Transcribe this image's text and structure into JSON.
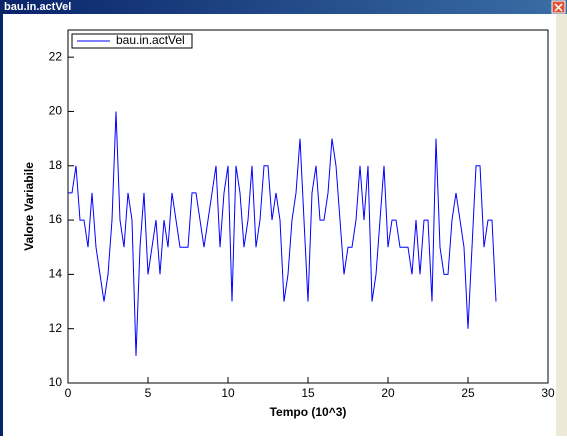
{
  "window": {
    "title": "bau.in.actVel"
  },
  "chart_data": {
    "type": "line",
    "x_label": "Tempo (10^3)",
    "y_label": "Valore Variabile",
    "x": [
      0,
      0.25,
      0.5,
      0.75,
      1,
      1.25,
      1.5,
      1.75,
      2,
      2.25,
      2.5,
      2.75,
      3,
      3.25,
      3.5,
      3.75,
      4,
      4.25,
      4.5,
      4.75,
      5,
      5.25,
      5.5,
      5.75,
      6,
      6.25,
      6.5,
      6.75,
      7,
      7.25,
      7.5,
      7.75,
      8,
      8.25,
      8.5,
      8.75,
      9,
      9.25,
      9.5,
      9.75,
      10,
      10.25,
      10.5,
      10.75,
      11,
      11.25,
      11.5,
      11.75,
      12,
      12.25,
      12.5,
      12.75,
      13,
      13.25,
      13.5,
      13.75,
      14,
      14.25,
      14.5,
      14.75,
      15,
      15.25,
      15.5,
      15.75,
      16,
      16.25,
      16.5,
      16.75,
      17,
      17.25,
      17.5,
      17.75,
      18,
      18.25,
      18.5,
      18.75,
      19,
      19.25,
      19.5,
      19.75,
      20,
      20.25,
      20.5,
      20.75,
      21,
      21.25,
      21.5,
      21.75,
      22,
      22.25,
      22.5,
      22.75,
      23,
      23.25,
      23.5,
      23.75,
      24,
      24.25,
      24.5,
      24.75,
      25,
      25.25,
      25.5,
      25.75,
      26,
      26.25,
      26.5,
      26.75
    ],
    "series": [
      {
        "name": "bau.in.actVel",
        "color": "#0000ff",
        "values": [
          17,
          17,
          18,
          16,
          16,
          15,
          17,
          15,
          14,
          13,
          14,
          16,
          20,
          16,
          15,
          17,
          16,
          11,
          15,
          17,
          14,
          15,
          16,
          14,
          16,
          15,
          17,
          16,
          15,
          15,
          15,
          17,
          17,
          16,
          15,
          16,
          17,
          18,
          15,
          17,
          18,
          13,
          18,
          17,
          15,
          16,
          18,
          15,
          16,
          18,
          18,
          16,
          17,
          16,
          13,
          14,
          16,
          17,
          19,
          16,
          13,
          17,
          18,
          16,
          16,
          17,
          19,
          18,
          16,
          14,
          15,
          15,
          16,
          18,
          16,
          18,
          13,
          14,
          16,
          18,
          15,
          16,
          16,
          15,
          15,
          15,
          14,
          16,
          14,
          16,
          16,
          13,
          19,
          15,
          14,
          14,
          16,
          17,
          16,
          15,
          12,
          15,
          18,
          18,
          15,
          16,
          16,
          13
        ]
      }
    ],
    "xlim": [
      0,
      30
    ],
    "ylim": [
      10,
      23
    ],
    "xticks": [
      0,
      5,
      10,
      15,
      20,
      25,
      30
    ],
    "yticks": [
      10,
      12,
      14,
      16,
      18,
      20,
      22
    ],
    "legend": "top-left"
  }
}
